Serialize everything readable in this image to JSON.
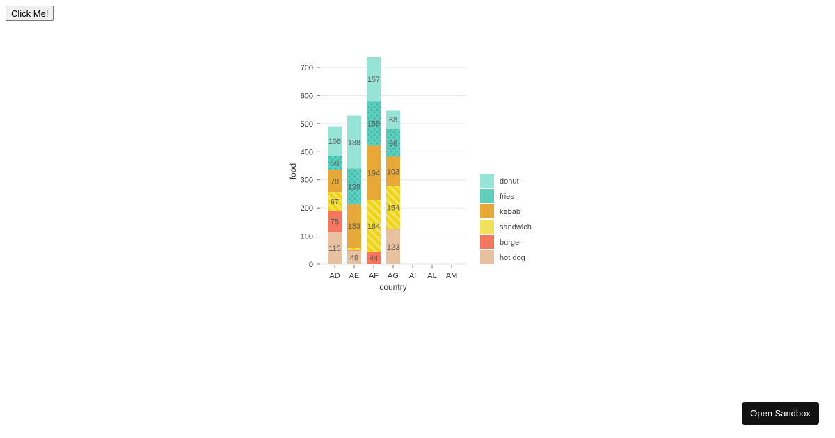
{
  "buttons": {
    "click_label": "Click Me!",
    "sandbox_label": "Open Sandbox"
  },
  "chart_data": {
    "type": "bar",
    "stacked": true,
    "xlabel": "country",
    "ylabel": "food",
    "categories": [
      "AD",
      "AE",
      "AF",
      "AG",
      "AI",
      "AL",
      "AM"
    ],
    "yticks": [
      0,
      100,
      200,
      300,
      400,
      500,
      600,
      700
    ],
    "ylim": [
      0,
      700
    ],
    "grid": true,
    "legend": "right",
    "series": [
      {
        "name": "hot dog",
        "values": [
          115,
          48,
          0,
          123,
          null,
          null,
          null
        ],
        "color": "#e8c1a0",
        "pattern": "none"
      },
      {
        "name": "burger",
        "values": [
          75,
          4,
          44,
          2,
          null,
          null,
          null
        ],
        "color": "#f47560",
        "pattern": "none"
      },
      {
        "name": "sandwich",
        "values": [
          67,
          7,
          184,
          154,
          null,
          null,
          null
        ],
        "color": "#f1e15b",
        "pattern": "lines"
      },
      {
        "name": "kebab",
        "values": [
          78,
          153,
          194,
          103,
          null,
          null,
          null
        ],
        "color": "#e8a838",
        "pattern": "none"
      },
      {
        "name": "fries",
        "values": [
          50,
          128,
          158,
          98,
          null,
          null,
          null
        ],
        "color": "#61cdbb",
        "pattern": "dots"
      },
      {
        "name": "donut",
        "values": [
          106,
          188,
          157,
          68,
          null,
          null,
          null
        ],
        "color": "#97e3d5",
        "pattern": "none"
      }
    ],
    "legend_order": [
      "donut",
      "fries",
      "kebab",
      "sandwich",
      "burger",
      "hot dog"
    ]
  }
}
